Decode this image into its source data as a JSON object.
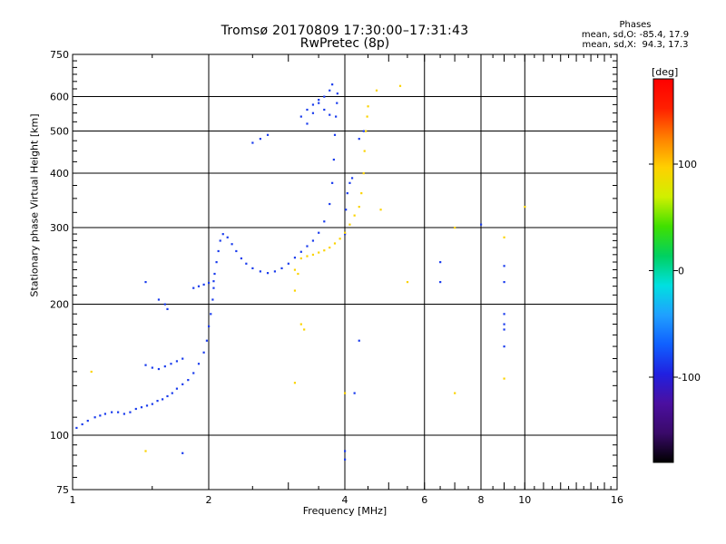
{
  "title": "Tromsø 20170809 17:30:00–17:31:43",
  "subtitle": "RwPretec (8p)",
  "stats": {
    "heading": "Phases",
    "line_o": "mean, sd,O: -85.4, 17.9",
    "line_x": "mean, sd,X:  94.3, 17.3"
  },
  "colors": {
    "grid": "#000000",
    "colorbar": [
      "#000000",
      "#3a0a6a",
      "#4b0fa0",
      "#2020e0",
      "#1060ff",
      "#20a0ff",
      "#00e0e0",
      "#00d060",
      "#40e000",
      "#d0f000",
      "#ffd000",
      "#ff8000",
      "#ff2000",
      "#ff0000"
    ]
  },
  "chart_data": {
    "type": "scatter",
    "title": "Tromsø 20170809 17:30:00–17:31:43",
    "subtitle": "RwPretec (8p)",
    "xlabel": "Frequency [MHz]",
    "ylabel": "Stationary phase Virtual Height [km]",
    "x_scale": "log",
    "y_scale": "log",
    "xlim": [
      1,
      16
    ],
    "ylim": [
      75,
      750
    ],
    "x_ticks": [
      1,
      2,
      4,
      6,
      8,
      10,
      16
    ],
    "y_ticks": [
      75,
      100,
      200,
      300,
      400,
      500,
      600,
      750
    ],
    "grid": true,
    "colorbar": {
      "label": "[deg]",
      "range": [
        -180,
        180
      ],
      "ticks": [
        100,
        0,
        -100
      ]
    },
    "series": [
      {
        "mode": "O",
        "phase_mean": -85.4,
        "phase_sd": 17.9,
        "points": [
          [
            1.02,
            104
          ],
          [
            1.05,
            106
          ],
          [
            1.08,
            108
          ],
          [
            1.12,
            110
          ],
          [
            1.15,
            111
          ],
          [
            1.18,
            112
          ],
          [
            1.22,
            113
          ],
          [
            1.26,
            113
          ],
          [
            1.3,
            112
          ],
          [
            1.34,
            113
          ],
          [
            1.38,
            115
          ],
          [
            1.42,
            116
          ],
          [
            1.46,
            117
          ],
          [
            1.5,
            118
          ],
          [
            1.54,
            120
          ],
          [
            1.58,
            121
          ],
          [
            1.62,
            123
          ],
          [
            1.66,
            125
          ],
          [
            1.7,
            128
          ],
          [
            1.75,
            131
          ],
          [
            1.8,
            134
          ],
          [
            1.85,
            139
          ],
          [
            1.9,
            146
          ],
          [
            1.95,
            155
          ],
          [
            1.98,
            165
          ],
          [
            2.0,
            178
          ],
          [
            2.02,
            190
          ],
          [
            2.04,
            205
          ],
          [
            2.05,
            218
          ],
          [
            2.06,
            235
          ],
          [
            2.08,
            250
          ],
          [
            2.1,
            265
          ],
          [
            2.12,
            280
          ],
          [
            2.15,
            290
          ],
          [
            2.2,
            285
          ],
          [
            2.25,
            275
          ],
          [
            2.3,
            265
          ],
          [
            2.36,
            255
          ],
          [
            2.42,
            248
          ],
          [
            2.5,
            242
          ],
          [
            2.6,
            238
          ],
          [
            2.7,
            236
          ],
          [
            2.8,
            238
          ],
          [
            2.9,
            242
          ],
          [
            3.0,
            248
          ],
          [
            3.1,
            256
          ],
          [
            3.2,
            264
          ],
          [
            3.3,
            272
          ],
          [
            3.4,
            280
          ],
          [
            3.5,
            292
          ],
          [
            3.6,
            310
          ],
          [
            3.7,
            340
          ],
          [
            3.75,
            380
          ],
          [
            3.78,
            430
          ],
          [
            3.8,
            490
          ],
          [
            3.82,
            540
          ],
          [
            3.84,
            580
          ],
          [
            3.85,
            610
          ],
          [
            1.45,
            145
          ],
          [
            1.5,
            143
          ],
          [
            1.55,
            142
          ],
          [
            1.6,
            144
          ],
          [
            1.65,
            146
          ],
          [
            1.7,
            148
          ],
          [
            1.75,
            150
          ],
          [
            1.85,
            218
          ],
          [
            1.9,
            220
          ],
          [
            1.95,
            222
          ],
          [
            2.0,
            224
          ],
          [
            2.05,
            226
          ],
          [
            1.55,
            205
          ],
          [
            1.6,
            200
          ],
          [
            1.62,
            195
          ],
          [
            2.5,
            470
          ],
          [
            2.6,
            480
          ],
          [
            2.7,
            490
          ],
          [
            3.3,
            520
          ],
          [
            3.4,
            550
          ],
          [
            3.5,
            580
          ],
          [
            3.6,
            600
          ],
          [
            3.7,
            620
          ],
          [
            3.75,
            640
          ],
          [
            3.2,
            540
          ],
          [
            3.3,
            560
          ],
          [
            3.4,
            575
          ],
          [
            3.5,
            590
          ],
          [
            3.6,
            560
          ],
          [
            3.7,
            545
          ],
          [
            4.0,
            290
          ],
          [
            4.02,
            330
          ],
          [
            4.05,
            360
          ],
          [
            4.1,
            380
          ],
          [
            4.15,
            390
          ],
          [
            4.3,
            480
          ],
          [
            4.4,
            500
          ],
          [
            6.5,
            250
          ],
          [
            6.5,
            225
          ],
          [
            8.0,
            305
          ],
          [
            9.0,
            245
          ],
          [
            9.0,
            225
          ],
          [
            9.0,
            190
          ],
          [
            9.0,
            180
          ],
          [
            9.0,
            175
          ],
          [
            9.0,
            160
          ],
          [
            4.0,
            88
          ],
          [
            4.0,
            92
          ],
          [
            4.2,
            125
          ],
          [
            4.3,
            165
          ],
          [
            1.45,
            225
          ],
          [
            1.75,
            91
          ]
        ]
      },
      {
        "mode": "X",
        "phase_mean": 94.3,
        "phase_sd": 17.3,
        "points": [
          [
            3.2,
            255
          ],
          [
            3.3,
            258
          ],
          [
            3.4,
            260
          ],
          [
            3.5,
            263
          ],
          [
            3.6,
            266
          ],
          [
            3.7,
            270
          ],
          [
            3.8,
            276
          ],
          [
            3.9,
            283
          ],
          [
            4.0,
            292
          ],
          [
            4.1,
            305
          ],
          [
            4.2,
            320
          ],
          [
            4.3,
            335
          ],
          [
            4.35,
            360
          ],
          [
            4.4,
            400
          ],
          [
            4.42,
            450
          ],
          [
            4.45,
            500
          ],
          [
            4.48,
            540
          ],
          [
            4.5,
            570
          ],
          [
            3.1,
            240
          ],
          [
            3.15,
            235
          ],
          [
            3.1,
            215
          ],
          [
            3.2,
            180
          ],
          [
            3.25,
            175
          ],
          [
            4.7,
            620
          ],
          [
            5.3,
            635
          ],
          [
            4.8,
            330
          ],
          [
            1.1,
            140
          ],
          [
            1.45,
            92
          ],
          [
            7.0,
            125
          ],
          [
            7.0,
            300
          ],
          [
            9.0,
            135
          ],
          [
            9.0,
            285
          ],
          [
            10.0,
            335
          ],
          [
            5.5,
            225
          ],
          [
            3.1,
            132
          ],
          [
            4.0,
            125
          ]
        ]
      }
    ]
  }
}
